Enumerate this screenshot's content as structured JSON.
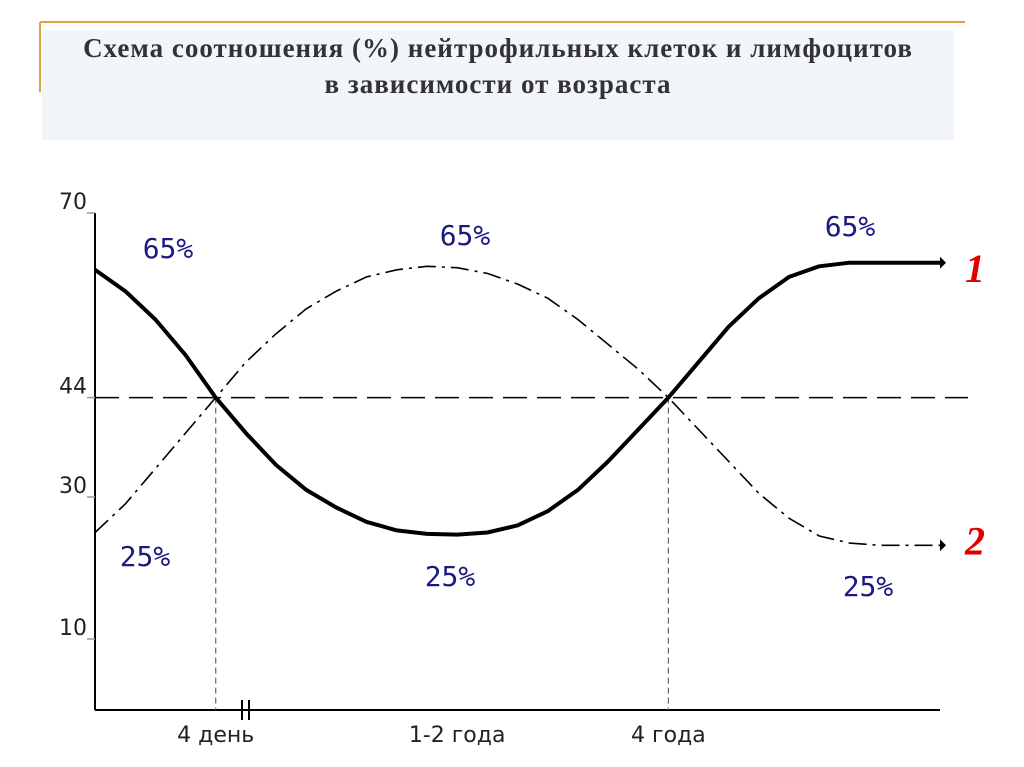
{
  "chart_data": {
    "type": "line",
    "title": "Схема соотношения (%) нейтрофильных клеток и лимфоцитов в зависимости от возраста",
    "categories": [
      null,
      null,
      null,
      null,
      "4 день",
      null,
      null,
      null,
      null,
      null,
      null,
      null,
      "1-2 года",
      null,
      null,
      null,
      null,
      null,
      null,
      "4 года",
      null,
      null,
      null,
      null,
      null,
      null,
      null,
      null,
      null
    ],
    "series": [
      {
        "name": "1",
        "color": "#000000",
        "style": "solid",
        "values": [
          62,
          59,
          55,
          50,
          44,
          39,
          34.5,
          31,
          28.5,
          26.5,
          25.3,
          24.8,
          24.7,
          25,
          26,
          28,
          31,
          35,
          39.5,
          44,
          49,
          54,
          58,
          61,
          62.5,
          63,
          63,
          63,
          63
        ]
      },
      {
        "name": "2",
        "color": "#000000",
        "style": "dashdot",
        "values": [
          25,
          29,
          34,
          39,
          44,
          49,
          53,
          56.5,
          59,
          61,
          62,
          62.5,
          62.3,
          61.5,
          60,
          58,
          55,
          51.5,
          48,
          44,
          39.5,
          35,
          30.5,
          27,
          24.5,
          23.5,
          23.2,
          23.2,
          23.2
        ]
      }
    ],
    "ylim": [
      0,
      70
    ],
    "yticks": [
      10,
      30,
      44,
      70
    ],
    "hline": 44,
    "annotations": [
      "65%",
      "65%",
      "65%",
      "25%",
      "25%",
      "25%"
    ],
    "legend_color": "#e00000",
    "annotation_color": "#1a1a80"
  }
}
